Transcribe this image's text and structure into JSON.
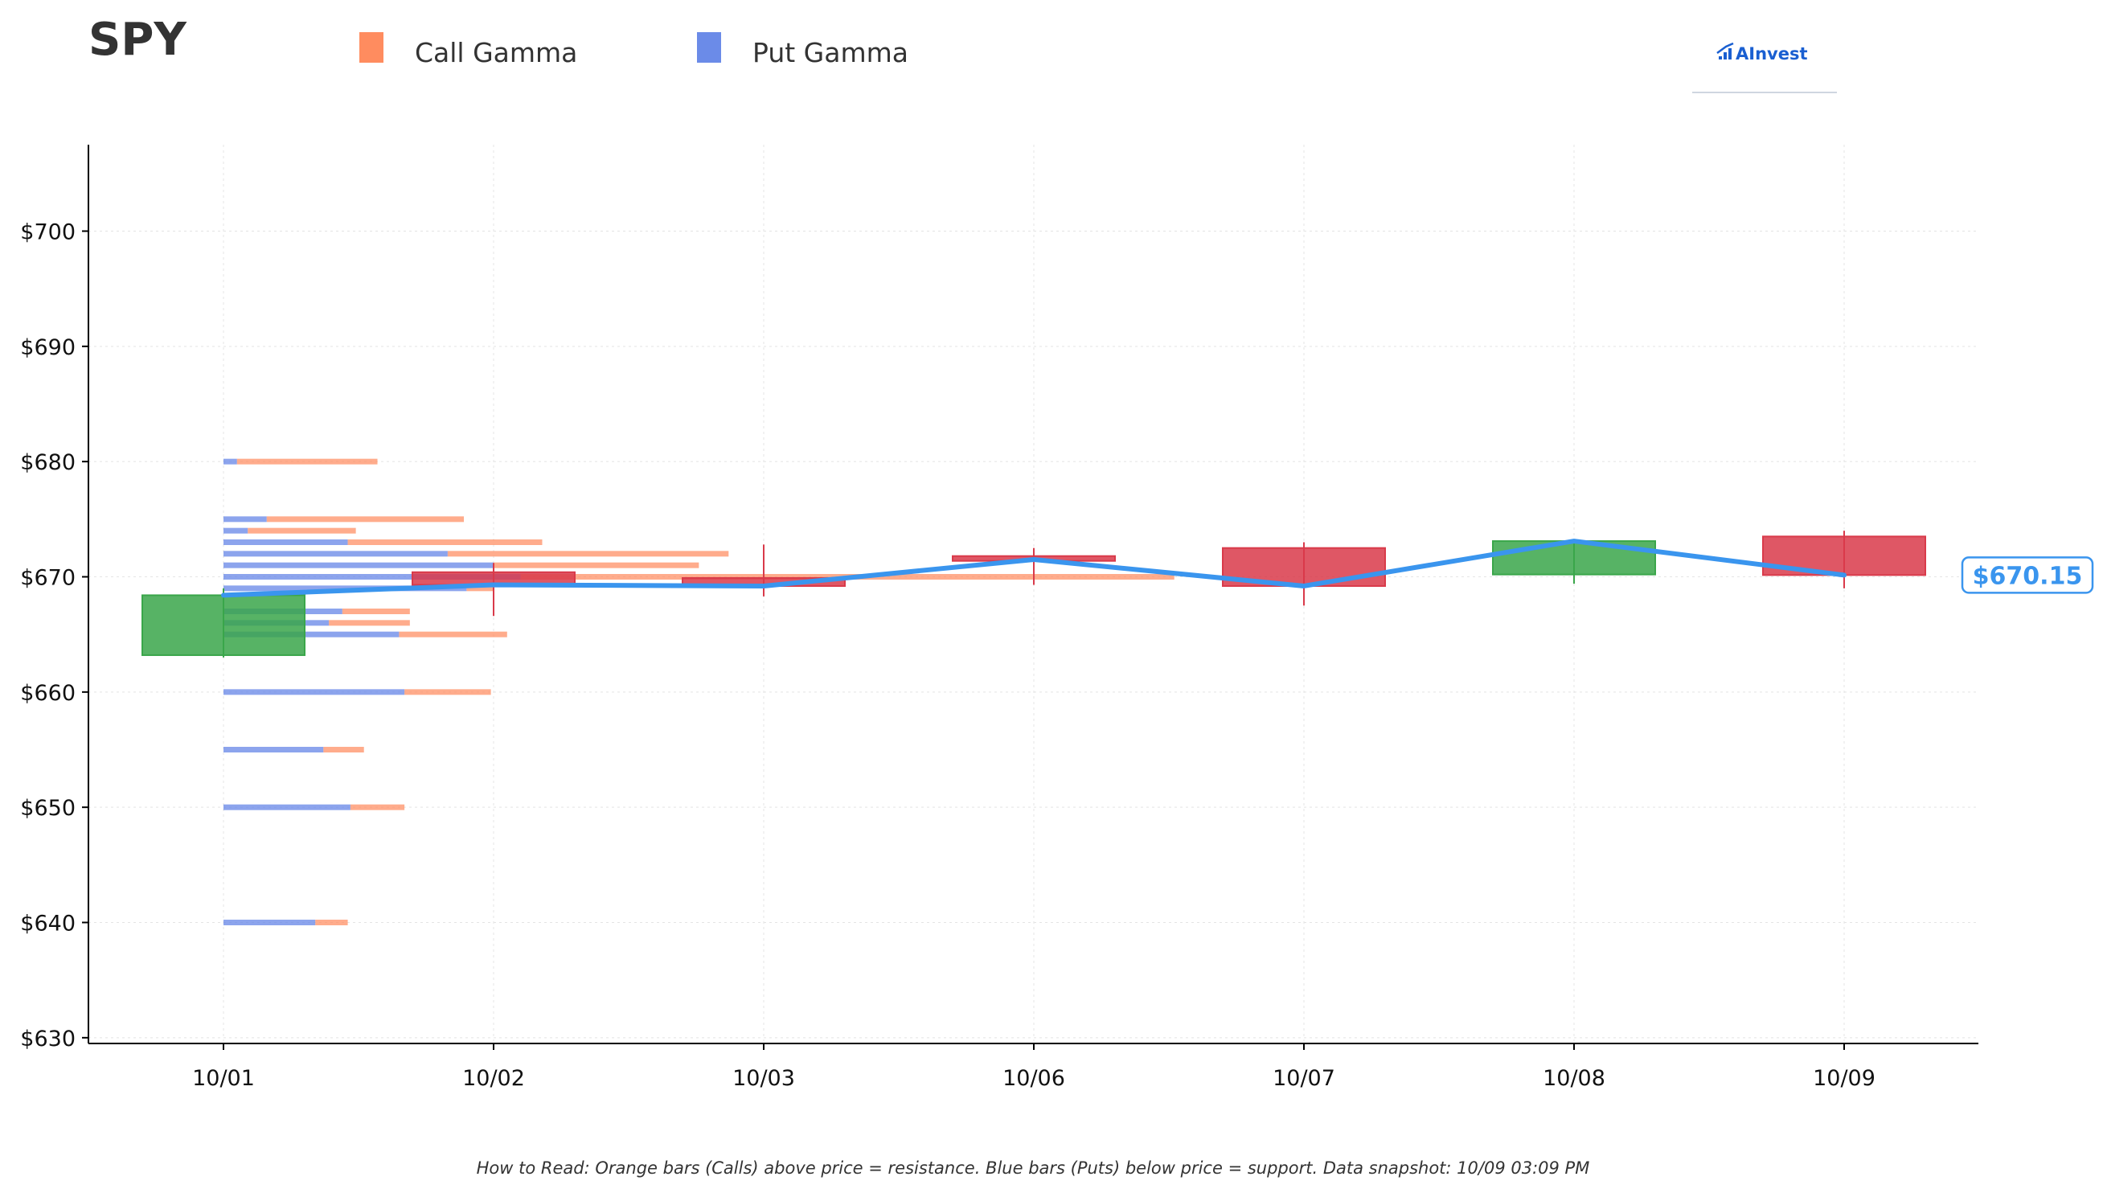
{
  "colors": {
    "call": "#ff8c5f",
    "put": "#6b8be8",
    "up": "#3aa64a",
    "down": "#d93a4a",
    "price_line": "#3a95ee",
    "logo": "#1a5fd1"
  },
  "logo": {
    "text": "AInvest",
    "icon": "bar-chart-icon"
  },
  "chart_data": {
    "type": "candlestick",
    "title": "SPY",
    "legend": [
      {
        "label": "Call Gamma",
        "color": "#ff8c5f"
      },
      {
        "label": "Put Gamma",
        "color": "#6b8be8"
      }
    ],
    "legend_position": "top",
    "x_categories": [
      "10/01",
      "10/02",
      "10/03",
      "10/06",
      "10/07",
      "10/08",
      "10/09"
    ],
    "ylim": [
      629.5,
      707.5
    ],
    "y_ticks": [
      630,
      640,
      650,
      660,
      670,
      680,
      690,
      700
    ],
    "y_tick_labels": [
      "$630",
      "$640",
      "$650",
      "$660",
      "$670",
      "$680",
      "$690",
      "$700"
    ],
    "grid": true,
    "candles": [
      {
        "date": "10/01",
        "open": 663.2,
        "high": 669.0,
        "low": 663.0,
        "close": 668.4
      },
      {
        "date": "10/02",
        "open": 670.4,
        "high": 671.2,
        "low": 666.6,
        "close": 669.3
      },
      {
        "date": "10/03",
        "open": 669.9,
        "high": 672.8,
        "low": 668.3,
        "close": 669.2
      },
      {
        "date": "10/06",
        "open": 671.8,
        "high": 672.5,
        "low": 669.3,
        "close": 671.5
      },
      {
        "date": "10/07",
        "open": 672.5,
        "high": 673.0,
        "low": 667.5,
        "close": 669.2
      },
      {
        "date": "10/08",
        "open": 670.2,
        "high": 673.1,
        "low": 669.4,
        "close": 673.1
      },
      {
        "date": "10/09",
        "open": 673.5,
        "high": 674.0,
        "low": 669.0,
        "close": 670.15
      }
    ],
    "price_line": {
      "name": "Close",
      "values": [
        668.4,
        669.3,
        669.2,
        671.5,
        669.2,
        673.1,
        670.15
      ],
      "last_label": "$670.15"
    },
    "gamma_units": "fraction of 10/01-10/03 spacing",
    "gamma_levels": [
      {
        "strike": 640,
        "put": 0.34,
        "call": 0.12
      },
      {
        "strike": 650,
        "put": 0.47,
        "call": 0.2
      },
      {
        "strike": 655,
        "put": 0.37,
        "call": 0.15
      },
      {
        "strike": 660,
        "put": 0.67,
        "call": 0.32
      },
      {
        "strike": 665,
        "put": 0.65,
        "call": 0.4
      },
      {
        "strike": 666,
        "put": 0.39,
        "call": 0.3
      },
      {
        "strike": 667,
        "put": 0.44,
        "call": 0.25
      },
      {
        "strike": 669,
        "put": 0.9,
        "call": 0.1
      },
      {
        "strike": 670,
        "put": 1.1,
        "call": 2.42
      },
      {
        "strike": 671,
        "put": 1.0,
        "call": 0.76
      },
      {
        "strike": 672,
        "put": 0.83,
        "call": 1.04
      },
      {
        "strike": 673,
        "put": 0.46,
        "call": 0.72
      },
      {
        "strike": 674,
        "put": 0.09,
        "call": 0.4
      },
      {
        "strike": 675,
        "put": 0.16,
        "call": 0.73
      },
      {
        "strike": 680,
        "put": 0.05,
        "call": 0.52
      }
    ],
    "footnote": "How to Read: Orange bars (Calls) above price = resistance. Blue bars (Puts) below price = support. Data snapshot: 10/09 03:09 PM"
  }
}
